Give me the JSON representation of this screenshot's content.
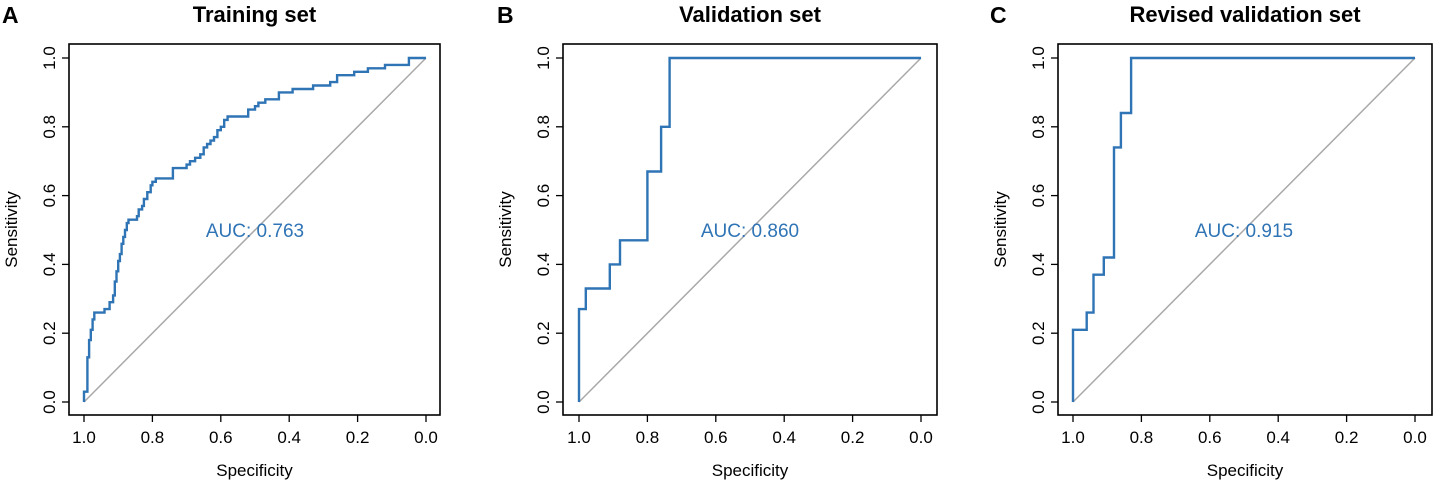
{
  "chart_data": [
    {
      "type": "line",
      "panel_letter": "A",
      "title": "Training set",
      "xlabel": "Specificity",
      "ylabel": "Sensitivity",
      "xlim": [
        1.0,
        0.0
      ],
      "ylim": [
        0.0,
        1.0
      ],
      "x_reversed": true,
      "xticks": [
        "1.0",
        "0.8",
        "0.6",
        "0.4",
        "0.2",
        "0.0"
      ],
      "yticks": [
        "0.0",
        "0.2",
        "0.4",
        "0.6",
        "0.8",
        "1.0"
      ],
      "annotation": "AUC: 0.763",
      "curve_color": "#2f74b5",
      "reference_line_color": "#a9a9a9",
      "series": [
        {
          "x": [
            1.0,
            1.0,
            0.99,
            0.99,
            0.985,
            0.985,
            0.98,
            0.98,
            0.975,
            0.975,
            0.97,
            0.97,
            0.94,
            0.94,
            0.925,
            0.925,
            0.915,
            0.915,
            0.91,
            0.91,
            0.905,
            0.905,
            0.9,
            0.9,
            0.895,
            0.895,
            0.89,
            0.89,
            0.885,
            0.885,
            0.88,
            0.88,
            0.875,
            0.875,
            0.87,
            0.87,
            0.845,
            0.845,
            0.84,
            0.84,
            0.83,
            0.83,
            0.825,
            0.825,
            0.815,
            0.815,
            0.805,
            0.805,
            0.8,
            0.8,
            0.79,
            0.79,
            0.78,
            0.78,
            0.74,
            0.74,
            0.7,
            0.7,
            0.69,
            0.69,
            0.675,
            0.675,
            0.66,
            0.66,
            0.65,
            0.65,
            0.64,
            0.64,
            0.63,
            0.63,
            0.62,
            0.62,
            0.61,
            0.61,
            0.6,
            0.6,
            0.59,
            0.59,
            0.58,
            0.58,
            0.56,
            0.56,
            0.52,
            0.52,
            0.5,
            0.5,
            0.49,
            0.49,
            0.48,
            0.48,
            0.47,
            0.47,
            0.43,
            0.43,
            0.39,
            0.39,
            0.33,
            0.33,
            0.28,
            0.28,
            0.26,
            0.26,
            0.21,
            0.21,
            0.17,
            0.17,
            0.12,
            0.12,
            0.09,
            0.09,
            0.05,
            0.05,
            0.0
          ],
          "y": [
            0.0,
            0.03,
            0.03,
            0.13,
            0.13,
            0.18,
            0.18,
            0.21,
            0.21,
            0.24,
            0.24,
            0.26,
            0.26,
            0.27,
            0.27,
            0.29,
            0.29,
            0.31,
            0.31,
            0.35,
            0.35,
            0.38,
            0.38,
            0.41,
            0.41,
            0.43,
            0.43,
            0.46,
            0.46,
            0.48,
            0.48,
            0.5,
            0.5,
            0.52,
            0.52,
            0.53,
            0.53,
            0.54,
            0.54,
            0.56,
            0.56,
            0.57,
            0.57,
            0.59,
            0.59,
            0.61,
            0.61,
            0.63,
            0.63,
            0.64,
            0.64,
            0.65,
            0.65,
            0.65,
            0.65,
            0.68,
            0.68,
            0.69,
            0.69,
            0.7,
            0.7,
            0.71,
            0.71,
            0.72,
            0.72,
            0.74,
            0.74,
            0.75,
            0.75,
            0.76,
            0.76,
            0.77,
            0.77,
            0.79,
            0.79,
            0.8,
            0.8,
            0.82,
            0.82,
            0.83,
            0.83,
            0.83,
            0.83,
            0.85,
            0.85,
            0.86,
            0.86,
            0.87,
            0.87,
            0.87,
            0.87,
            0.88,
            0.88,
            0.9,
            0.9,
            0.91,
            0.91,
            0.92,
            0.92,
            0.93,
            0.93,
            0.95,
            0.95,
            0.96,
            0.96,
            0.97,
            0.97,
            0.98,
            0.98,
            0.98,
            0.98,
            1.0,
            1.0
          ]
        }
      ]
    },
    {
      "type": "line",
      "panel_letter": "B",
      "title": "Validation set",
      "xlabel": "Specificity",
      "ylabel": "Sensitivity",
      "xlim": [
        1.0,
        0.0
      ],
      "ylim": [
        0.0,
        1.0
      ],
      "x_reversed": true,
      "xticks": [
        "1.0",
        "0.8",
        "0.6",
        "0.4",
        "0.2",
        "0.0"
      ],
      "yticks": [
        "0.0",
        "0.2",
        "0.4",
        "0.6",
        "0.8",
        "1.0"
      ],
      "annotation": "AUC: 0.860",
      "curve_color": "#2f74b5",
      "reference_line_color": "#a9a9a9",
      "series": [
        {
          "x": [
            1.0,
            1.0,
            0.98,
            0.98,
            0.91,
            0.91,
            0.88,
            0.88,
            0.8,
            0.8,
            0.76,
            0.76,
            0.735,
            0.735,
            0.0
          ],
          "y": [
            0.0,
            0.27,
            0.27,
            0.33,
            0.33,
            0.4,
            0.4,
            0.47,
            0.47,
            0.67,
            0.67,
            0.8,
            0.8,
            1.0,
            1.0
          ]
        }
      ]
    },
    {
      "type": "line",
      "panel_letter": "C",
      "title": "Revised validation set",
      "xlabel": "Specificity",
      "ylabel": "Sensitivity",
      "xlim": [
        1.0,
        0.0
      ],
      "ylim": [
        0.0,
        1.0
      ],
      "x_reversed": true,
      "xticks": [
        "1.0",
        "0.8",
        "0.6",
        "0.4",
        "0.2",
        "0.0"
      ],
      "yticks": [
        "0.0",
        "0.2",
        "0.4",
        "0.6",
        "0.8",
        "1.0"
      ],
      "annotation": "AUC: 0.915",
      "curve_color": "#2f74b5",
      "reference_line_color": "#a9a9a9",
      "series": [
        {
          "x": [
            1.0,
            1.0,
            0.96,
            0.96,
            0.94,
            0.94,
            0.91,
            0.91,
            0.88,
            0.88,
            0.86,
            0.86,
            0.83,
            0.83,
            0.0
          ],
          "y": [
            0.0,
            0.21,
            0.21,
            0.26,
            0.26,
            0.37,
            0.37,
            0.42,
            0.42,
            0.74,
            0.74,
            0.84,
            0.84,
            1.0,
            1.0
          ]
        }
      ]
    }
  ]
}
